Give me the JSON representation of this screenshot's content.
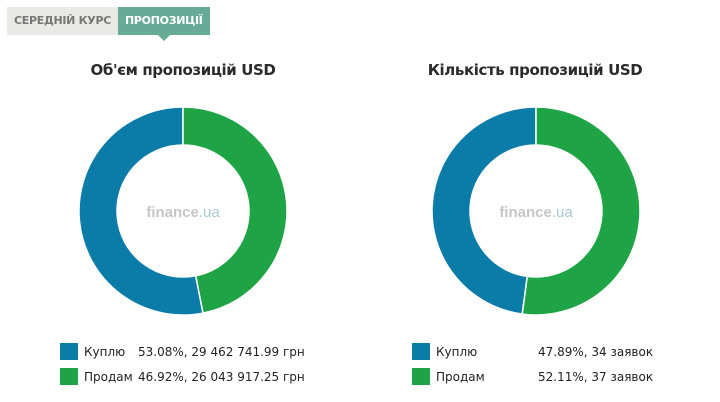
{
  "tabs": [
    {
      "label": "СЕРЕДНІЙ КУРС",
      "active": false
    },
    {
      "label": "ПРОПОЗИЦІЇ",
      "active": true
    }
  ],
  "watermark": {
    "main": "finance",
    "suffix": ".ua"
  },
  "colors": {
    "buy": "#0b7ba8",
    "sell": "#1ea444"
  },
  "chart_data": [
    {
      "type": "pie",
      "style": "donut",
      "title": "Об'єм пропозицій USD",
      "categories": [
        "Куплю",
        "Продам"
      ],
      "values": [
        53.08,
        46.92
      ],
      "value_labels": [
        "53.08%, 29 462 741.99 грн",
        "46.92%, 26 043 917.25 грн"
      ],
      "legend": "bottom"
    },
    {
      "type": "pie",
      "style": "donut",
      "title": "Кількість пропозицій USD",
      "categories": [
        "Куплю",
        "Продам"
      ],
      "values": [
        47.89,
        52.11
      ],
      "value_labels": [
        "47.89%, 34 заявок",
        "52.11%, 37 заявок"
      ],
      "legend": "bottom"
    }
  ]
}
